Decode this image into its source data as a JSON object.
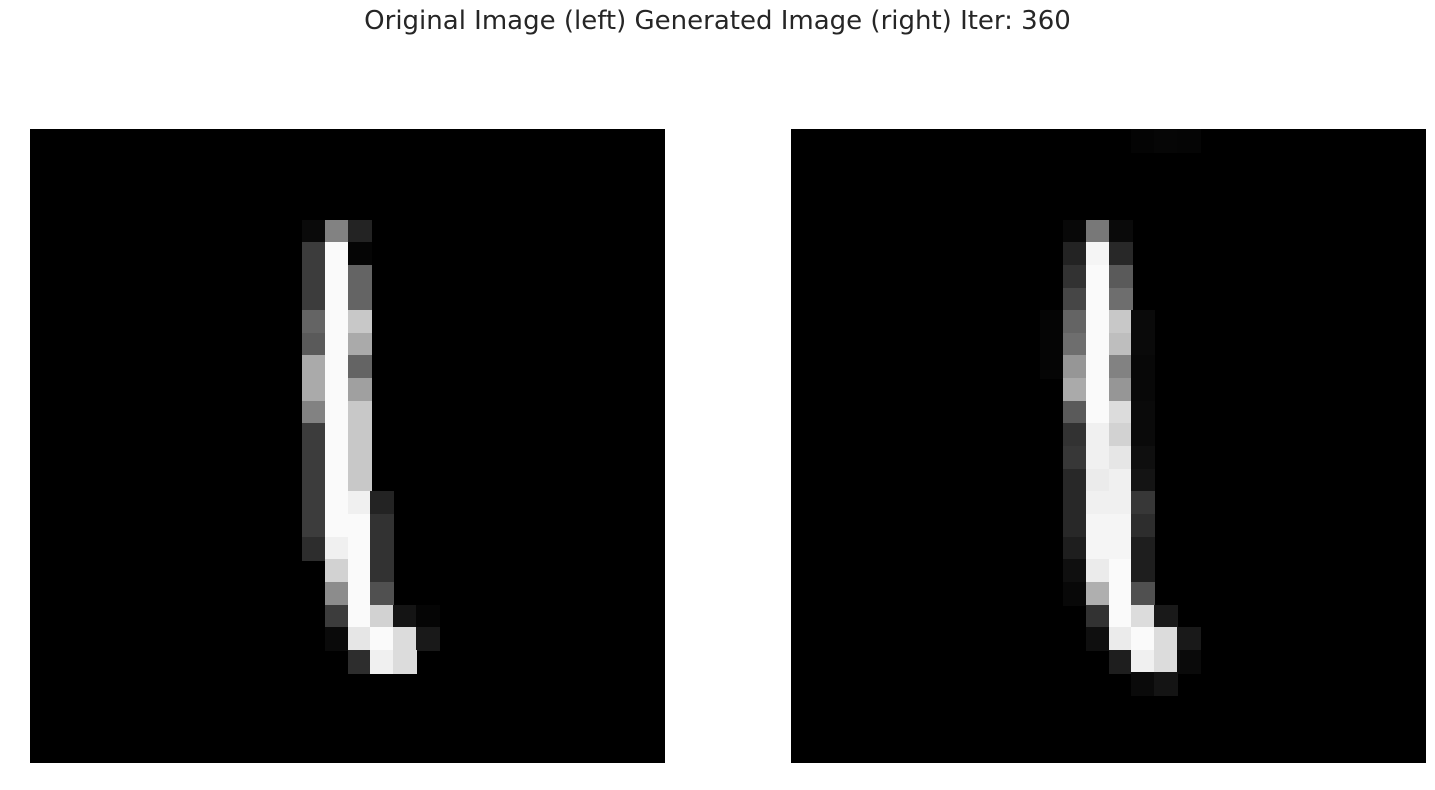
{
  "figure": {
    "title": "Original Image (left) Generated Image (right) Iter: 360"
  },
  "panels": [
    {
      "name": "original",
      "grid_size": 28,
      "pixels": [
        [
          4,
          12,
          10
        ],
        [
          4,
          13,
          130
        ],
        [
          4,
          14,
          35
        ],
        [
          5,
          12,
          60
        ],
        [
          5,
          13,
          250
        ],
        [
          5,
          14,
          5
        ],
        [
          6,
          12,
          60
        ],
        [
          6,
          13,
          250
        ],
        [
          6,
          14,
          100
        ],
        [
          7,
          12,
          60
        ],
        [
          7,
          13,
          250
        ],
        [
          7,
          14,
          100
        ],
        [
          8,
          12,
          100
        ],
        [
          8,
          13,
          250
        ],
        [
          8,
          14,
          200
        ],
        [
          9,
          12,
          90
        ],
        [
          9,
          13,
          250
        ],
        [
          9,
          14,
          170
        ],
        [
          10,
          12,
          170
        ],
        [
          10,
          13,
          250
        ],
        [
          10,
          14,
          100
        ],
        [
          11,
          12,
          170
        ],
        [
          11,
          13,
          250
        ],
        [
          11,
          14,
          160
        ],
        [
          12,
          12,
          130
        ],
        [
          12,
          13,
          250
        ],
        [
          12,
          14,
          200
        ],
        [
          13,
          12,
          60
        ],
        [
          13,
          13,
          250
        ],
        [
          13,
          14,
          200
        ],
        [
          14,
          12,
          60
        ],
        [
          14,
          13,
          250
        ],
        [
          14,
          14,
          200
        ],
        [
          15,
          12,
          60
        ],
        [
          15,
          13,
          250
        ],
        [
          15,
          14,
          200
        ],
        [
          16,
          12,
          60
        ],
        [
          16,
          13,
          250
        ],
        [
          16,
          14,
          240
        ],
        [
          16,
          15,
          35
        ],
        [
          17,
          12,
          60
        ],
        [
          17,
          13,
          250
        ],
        [
          17,
          14,
          250
        ],
        [
          17,
          15,
          50
        ],
        [
          18,
          12,
          45
        ],
        [
          18,
          13,
          240
        ],
        [
          18,
          14,
          250
        ],
        [
          18,
          15,
          50
        ],
        [
          19,
          13,
          210
        ],
        [
          19,
          14,
          250
        ],
        [
          19,
          15,
          50
        ],
        [
          20,
          13,
          140
        ],
        [
          20,
          14,
          250
        ],
        [
          20,
          15,
          80
        ],
        [
          21,
          13,
          60
        ],
        [
          21,
          14,
          250
        ],
        [
          21,
          15,
          210
        ],
        [
          21,
          16,
          20
        ],
        [
          21,
          17,
          5
        ],
        [
          22,
          13,
          10
        ],
        [
          22,
          14,
          230
        ],
        [
          22,
          15,
          250
        ],
        [
          22,
          16,
          220
        ],
        [
          22,
          17,
          25
        ],
        [
          23,
          14,
          45
        ],
        [
          23,
          15,
          240
        ],
        [
          23,
          16,
          220
        ]
      ]
    },
    {
      "name": "generated",
      "grid_size": 28,
      "pixels": [
        [
          0,
          15,
          4
        ],
        [
          0,
          16,
          6
        ],
        [
          0,
          17,
          5
        ],
        [
          4,
          12,
          8
        ],
        [
          4,
          13,
          120
        ],
        [
          4,
          14,
          10
        ],
        [
          5,
          12,
          35
        ],
        [
          5,
          13,
          245
        ],
        [
          5,
          14,
          40
        ],
        [
          6,
          12,
          50
        ],
        [
          6,
          13,
          250
        ],
        [
          6,
          14,
          90
        ],
        [
          7,
          12,
          70
        ],
        [
          7,
          13,
          250
        ],
        [
          7,
          14,
          110
        ],
        [
          8,
          11,
          5
        ],
        [
          8,
          12,
          100
        ],
        [
          8,
          13,
          250
        ],
        [
          8,
          14,
          200
        ],
        [
          8,
          15,
          10
        ],
        [
          9,
          11,
          5
        ],
        [
          9,
          12,
          110
        ],
        [
          9,
          13,
          250
        ],
        [
          9,
          14,
          190
        ],
        [
          9,
          15,
          10
        ],
        [
          10,
          11,
          5
        ],
        [
          10,
          12,
          150
        ],
        [
          10,
          13,
          250
        ],
        [
          10,
          14,
          130
        ],
        [
          10,
          15,
          8
        ],
        [
          11,
          12,
          170
        ],
        [
          11,
          13,
          250
        ],
        [
          11,
          14,
          150
        ],
        [
          11,
          15,
          8
        ],
        [
          12,
          12,
          90
        ],
        [
          12,
          13,
          250
        ],
        [
          12,
          14,
          220
        ],
        [
          12,
          15,
          10
        ],
        [
          13,
          12,
          50
        ],
        [
          13,
          13,
          240
        ],
        [
          13,
          14,
          210
        ],
        [
          13,
          15,
          10
        ],
        [
          14,
          12,
          55
        ],
        [
          14,
          13,
          240
        ],
        [
          14,
          14,
          230
        ],
        [
          14,
          15,
          15
        ],
        [
          15,
          12,
          40
        ],
        [
          15,
          13,
          235
        ],
        [
          15,
          14,
          240
        ],
        [
          15,
          15,
          20
        ],
        [
          16,
          12,
          40
        ],
        [
          16,
          13,
          240
        ],
        [
          16,
          14,
          240
        ],
        [
          16,
          15,
          55
        ],
        [
          17,
          12,
          40
        ],
        [
          17,
          13,
          245
        ],
        [
          17,
          14,
          245
        ],
        [
          17,
          15,
          45
        ],
        [
          18,
          12,
          30
        ],
        [
          18,
          13,
          245
        ],
        [
          18,
          14,
          245
        ],
        [
          18,
          15,
          30
        ],
        [
          19,
          12,
          15
        ],
        [
          19,
          13,
          235
        ],
        [
          19,
          14,
          250
        ],
        [
          19,
          15,
          30
        ],
        [
          20,
          12,
          8
        ],
        [
          20,
          13,
          175
        ],
        [
          20,
          14,
          250
        ],
        [
          20,
          15,
          80
        ],
        [
          21,
          13,
          50
        ],
        [
          21,
          14,
          250
        ],
        [
          21,
          15,
          220
        ],
        [
          21,
          16,
          25
        ],
        [
          22,
          13,
          15
        ],
        [
          22,
          14,
          235
        ],
        [
          22,
          15,
          250
        ],
        [
          22,
          16,
          220
        ],
        [
          22,
          17,
          25
        ],
        [
          23,
          14,
          30
        ],
        [
          23,
          15,
          240
        ],
        [
          23,
          16,
          220
        ],
        [
          23,
          17,
          10
        ],
        [
          24,
          15,
          10
        ],
        [
          24,
          16,
          20
        ]
      ]
    }
  ]
}
